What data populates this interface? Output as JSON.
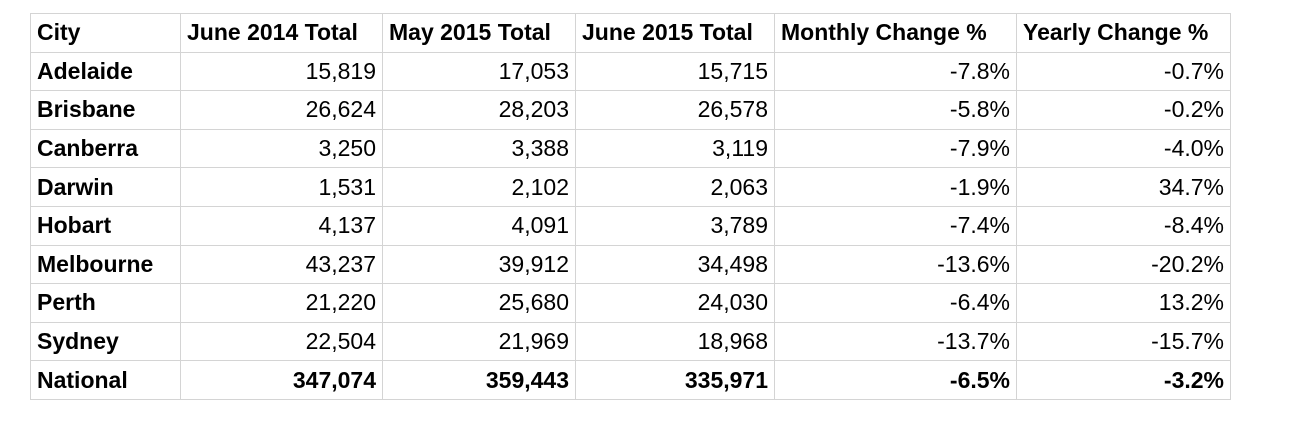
{
  "table": {
    "headers": [
      "City",
      "June 2014 Total",
      "May 2015 Total",
      "June 2015 Total",
      "Monthly Change %",
      "Yearly Change %"
    ],
    "rows": [
      {
        "city": "Adelaide",
        "jun2014": "15,819",
        "may2015": "17,053",
        "jun2015": "15,715",
        "monthly": "-7.8%",
        "yearly": "-0.7%"
      },
      {
        "city": "Brisbane",
        "jun2014": "26,624",
        "may2015": "28,203",
        "jun2015": "26,578",
        "monthly": "-5.8%",
        "yearly": "-0.2%"
      },
      {
        "city": "Canberra",
        "jun2014": "3,250",
        "may2015": "3,388",
        "jun2015": "3,119",
        "monthly": "-7.9%",
        "yearly": "-4.0%"
      },
      {
        "city": "Darwin",
        "jun2014": "1,531",
        "may2015": "2,102",
        "jun2015": "2,063",
        "monthly": "-1.9%",
        "yearly": "34.7%"
      },
      {
        "city": "Hobart",
        "jun2014": "4,137",
        "may2015": "4,091",
        "jun2015": "3,789",
        "monthly": "-7.4%",
        "yearly": "-8.4%"
      },
      {
        "city": "Melbourne",
        "jun2014": "43,237",
        "may2015": "39,912",
        "jun2015": "34,498",
        "monthly": "-13.6%",
        "yearly": "-20.2%"
      },
      {
        "city": "Perth",
        "jun2014": "21,220",
        "may2015": "25,680",
        "jun2015": "24,030",
        "monthly": "-6.4%",
        "yearly": "13.2%"
      },
      {
        "city": "Sydney",
        "jun2014": "22,504",
        "may2015": "21,969",
        "jun2015": "18,968",
        "monthly": "-13.7%",
        "yearly": "-15.7%"
      }
    ],
    "national": {
      "city": "National",
      "jun2014": "347,074",
      "may2015": "359,443",
      "jun2015": "335,971",
      "monthly": "-6.5%",
      "yearly": "-3.2%"
    }
  }
}
